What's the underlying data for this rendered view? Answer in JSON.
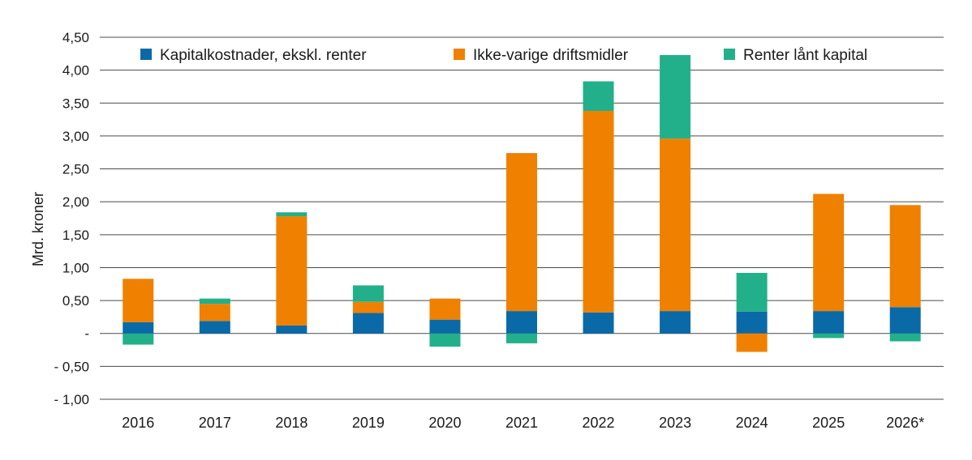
{
  "chart_data": {
    "type": "bar",
    "stacked": true,
    "ylabel": "Mrd. kroner",
    "ylim": [
      -1.0,
      4.5
    ],
    "yticks": [
      {
        "value": 4.5,
        "label": "4,50"
      },
      {
        "value": 4.0,
        "label": "4,00"
      },
      {
        "value": 3.5,
        "label": "3,50"
      },
      {
        "value": 3.0,
        "label": "3,00"
      },
      {
        "value": 2.5,
        "label": "2,50"
      },
      {
        "value": 2.0,
        "label": "2,00"
      },
      {
        "value": 1.5,
        "label": "1,50"
      },
      {
        "value": 1.0,
        "label": "1,00"
      },
      {
        "value": 0.5,
        "label": "0,50"
      },
      {
        "value": 0.0,
        "label": "-"
      },
      {
        "value": -0.5,
        "label": "- 0,50"
      },
      {
        "value": -1.0,
        "label": "- 1,00"
      }
    ],
    "grid": "horizontal",
    "legend_position": "top",
    "categories": [
      "2016",
      "2017",
      "2018",
      "2019",
      "2020",
      "2021",
      "2022",
      "2023",
      "2024",
      "2025",
      "2026*"
    ],
    "series": [
      {
        "name": "Kapitalkostnader, ekskl. renter",
        "color": "#0a6aa8",
        "values": [
          0.17,
          0.19,
          0.12,
          0.31,
          0.21,
          0.34,
          0.32,
          0.34,
          0.33,
          0.34,
          0.4
        ]
      },
      {
        "name": "Ikke-varige driftsmidler",
        "color": "#f08000",
        "values": [
          0.66,
          0.26,
          1.66,
          0.17,
          0.32,
          2.4,
          3.06,
          2.62,
          -0.28,
          1.78,
          1.55
        ]
      },
      {
        "name": "Renter lånt kapital",
        "color": "#22b08a",
        "values": [
          -0.17,
          0.08,
          0.06,
          0.25,
          -0.2,
          -0.15,
          0.45,
          1.27,
          0.59,
          -0.07,
          -0.12
        ]
      }
    ]
  }
}
